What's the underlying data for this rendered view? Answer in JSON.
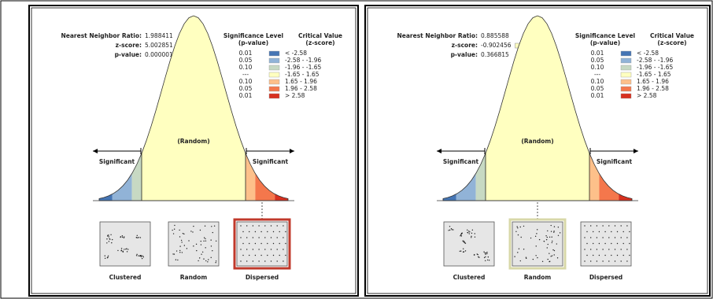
{
  "panels": [
    {
      "stats": [
        {
          "label": "Nearest Neighbor Ratio:",
          "value": "1.988411"
        },
        {
          "label": "z-score:",
          "value": "5.002851",
          "color": "#d7301f"
        },
        {
          "label": "p-value:",
          "value": "0.000001"
        }
      ],
      "legend": {
        "headers": [
          "Significance Level",
          "(p-value)",
          "Critical Value",
          "(z-score)"
        ],
        "rows": [
          {
            "p": "0.01",
            "range": "< -2.58",
            "color": "#4575b4"
          },
          {
            "p": "0.05",
            "range": "-2.58 - -1.96",
            "color": "#91b3d7"
          },
          {
            "p": "0.10",
            "range": "-1.96 - -1.65",
            "color": "#c7d9c3"
          },
          {
            "p": "---",
            "range": "-1.65 - 1.65",
            "color": "#ffffc0"
          },
          {
            "p": "0.10",
            "range": "1.65 - 1.96",
            "color": "#fdc08a"
          },
          {
            "p": "0.05",
            "range": "1.96 - 2.58",
            "color": "#f4774c"
          },
          {
            "p": "0.01",
            "range": "> 2.58",
            "color": "#d7301f"
          }
        ]
      },
      "curve_labels": {
        "left": "Significant",
        "center": "(Random)",
        "right": "Significant"
      },
      "patterns": [
        {
          "label": "Clustered"
        },
        {
          "label": "Random"
        },
        {
          "label": "Dispersed",
          "selected": true,
          "color": "#c0392b"
        }
      ]
    },
    {
      "stats": [
        {
          "label": "Nearest Neighbor Ratio:",
          "value": "0.885588"
        },
        {
          "label": "z-score:",
          "value": "-0.902456",
          "color": "#ffffc0"
        },
        {
          "label": "p-value:",
          "value": "0.366815"
        }
      ],
      "legend": {
        "headers": [
          "Significance Level",
          "(p-value)",
          "Critical Value",
          "(z-score)"
        ],
        "rows": [
          {
            "p": "0.01",
            "range": "< -2.58",
            "color": "#4575b4"
          },
          {
            "p": "0.05",
            "range": "-2.58 - -1.96",
            "color": "#91b3d7"
          },
          {
            "p": "0.10",
            "range": "-1.96 - -1.65",
            "color": "#c7d9c3"
          },
          {
            "p": "---",
            "range": "-1.65 - 1.65",
            "color": "#ffffc0"
          },
          {
            "p": "0.10",
            "range": "1.65 - 1.96",
            "color": "#fdc08a"
          },
          {
            "p": "0.05",
            "range": "1.96 - 2.58",
            "color": "#f4774c"
          },
          {
            "p": "0.01",
            "range": "> 2.58",
            "color": "#d7301f"
          }
        ]
      },
      "curve_labels": {
        "left": "Significant",
        "center": "(Random)",
        "right": "Significant"
      },
      "patterns": [
        {
          "label": "Clustered"
        },
        {
          "label": "Random",
          "selected": true,
          "color": "#d8d8a8"
        },
        {
          "label": "Dispersed"
        }
      ]
    }
  ]
}
